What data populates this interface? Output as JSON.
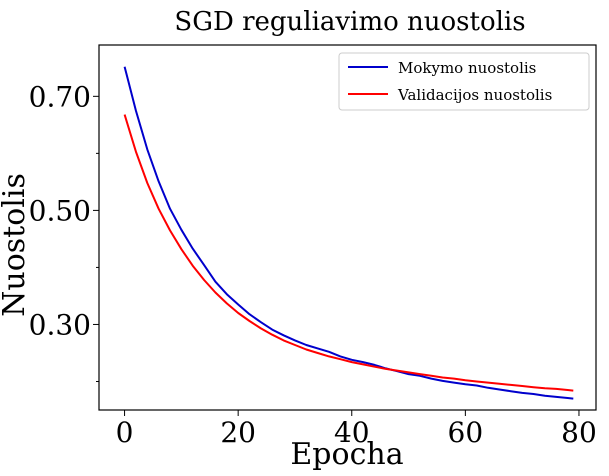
{
  "chart_data": {
    "type": "line",
    "title": "SGD reguliavimo nuostolis",
    "xlabel": "Epocha",
    "ylabel": "Nuostolis",
    "xlim": [
      -4.5,
      83
    ],
    "ylim": [
      0.15,
      0.79
    ],
    "x_ticks": [
      0,
      20,
      40,
      60,
      80
    ],
    "x_tick_labels": [
      "0",
      "20",
      "40",
      "60",
      "80"
    ],
    "y_ticks": [
      0.3,
      0.5,
      0.7
    ],
    "y_tick_labels": [
      "0.30",
      "0.50",
      "0.70"
    ],
    "y_minor_ticks": [
      0.2,
      0.4,
      0.6
    ],
    "grid": false,
    "legend": "top-right",
    "series": [
      {
        "name": "Mokymo nuostolis",
        "color": "#0000cc",
        "points": [
          [
            0,
            0.752
          ],
          [
            2,
            0.675
          ],
          [
            4,
            0.607
          ],
          [
            6,
            0.551
          ],
          [
            8,
            0.503
          ],
          [
            10,
            0.466
          ],
          [
            12,
            0.433
          ],
          [
            14,
            0.404
          ],
          [
            16,
            0.375
          ],
          [
            18,
            0.353
          ],
          [
            20,
            0.335
          ],
          [
            22,
            0.318
          ],
          [
            24,
            0.304
          ],
          [
            26,
            0.291
          ],
          [
            28,
            0.281
          ],
          [
            30,
            0.272
          ],
          [
            32,
            0.264
          ],
          [
            34,
            0.258
          ],
          [
            36,
            0.252
          ],
          [
            38,
            0.244
          ],
          [
            40,
            0.238
          ],
          [
            42,
            0.234
          ],
          [
            44,
            0.229
          ],
          [
            46,
            0.223
          ],
          [
            48,
            0.218
          ],
          [
            50,
            0.213
          ],
          [
            52,
            0.21
          ],
          [
            54,
            0.205
          ],
          [
            56,
            0.201
          ],
          [
            58,
            0.198
          ],
          [
            60,
            0.195
          ],
          [
            62,
            0.193
          ],
          [
            64,
            0.189
          ],
          [
            66,
            0.186
          ],
          [
            68,
            0.183
          ],
          [
            70,
            0.18
          ],
          [
            72,
            0.178
          ],
          [
            74,
            0.175
          ],
          [
            76,
            0.173
          ],
          [
            78,
            0.171
          ],
          [
            79,
            0.17
          ]
        ]
      },
      {
        "name": "Validacijos nuostolis",
        "color": "#ff0000",
        "points": [
          [
            0,
            0.668
          ],
          [
            2,
            0.603
          ],
          [
            4,
            0.548
          ],
          [
            6,
            0.503
          ],
          [
            8,
            0.465
          ],
          [
            10,
            0.432
          ],
          [
            12,
            0.403
          ],
          [
            14,
            0.378
          ],
          [
            16,
            0.356
          ],
          [
            18,
            0.337
          ],
          [
            20,
            0.32
          ],
          [
            22,
            0.306
          ],
          [
            24,
            0.293
          ],
          [
            26,
            0.282
          ],
          [
            28,
            0.272
          ],
          [
            30,
            0.264
          ],
          [
            32,
            0.256
          ],
          [
            34,
            0.25
          ],
          [
            36,
            0.244
          ],
          [
            38,
            0.239
          ],
          [
            40,
            0.234
          ],
          [
            42,
            0.23
          ],
          [
            44,
            0.226
          ],
          [
            46,
            0.222
          ],
          [
            48,
            0.219
          ],
          [
            50,
            0.216
          ],
          [
            52,
            0.213
          ],
          [
            54,
            0.21
          ],
          [
            56,
            0.207
          ],
          [
            58,
            0.205
          ],
          [
            60,
            0.202
          ],
          [
            62,
            0.2
          ],
          [
            64,
            0.198
          ],
          [
            66,
            0.196
          ],
          [
            68,
            0.194
          ],
          [
            70,
            0.192
          ],
          [
            72,
            0.19
          ],
          [
            74,
            0.188
          ],
          [
            76,
            0.187
          ],
          [
            78,
            0.185
          ],
          [
            79,
            0.184
          ]
        ]
      }
    ]
  }
}
